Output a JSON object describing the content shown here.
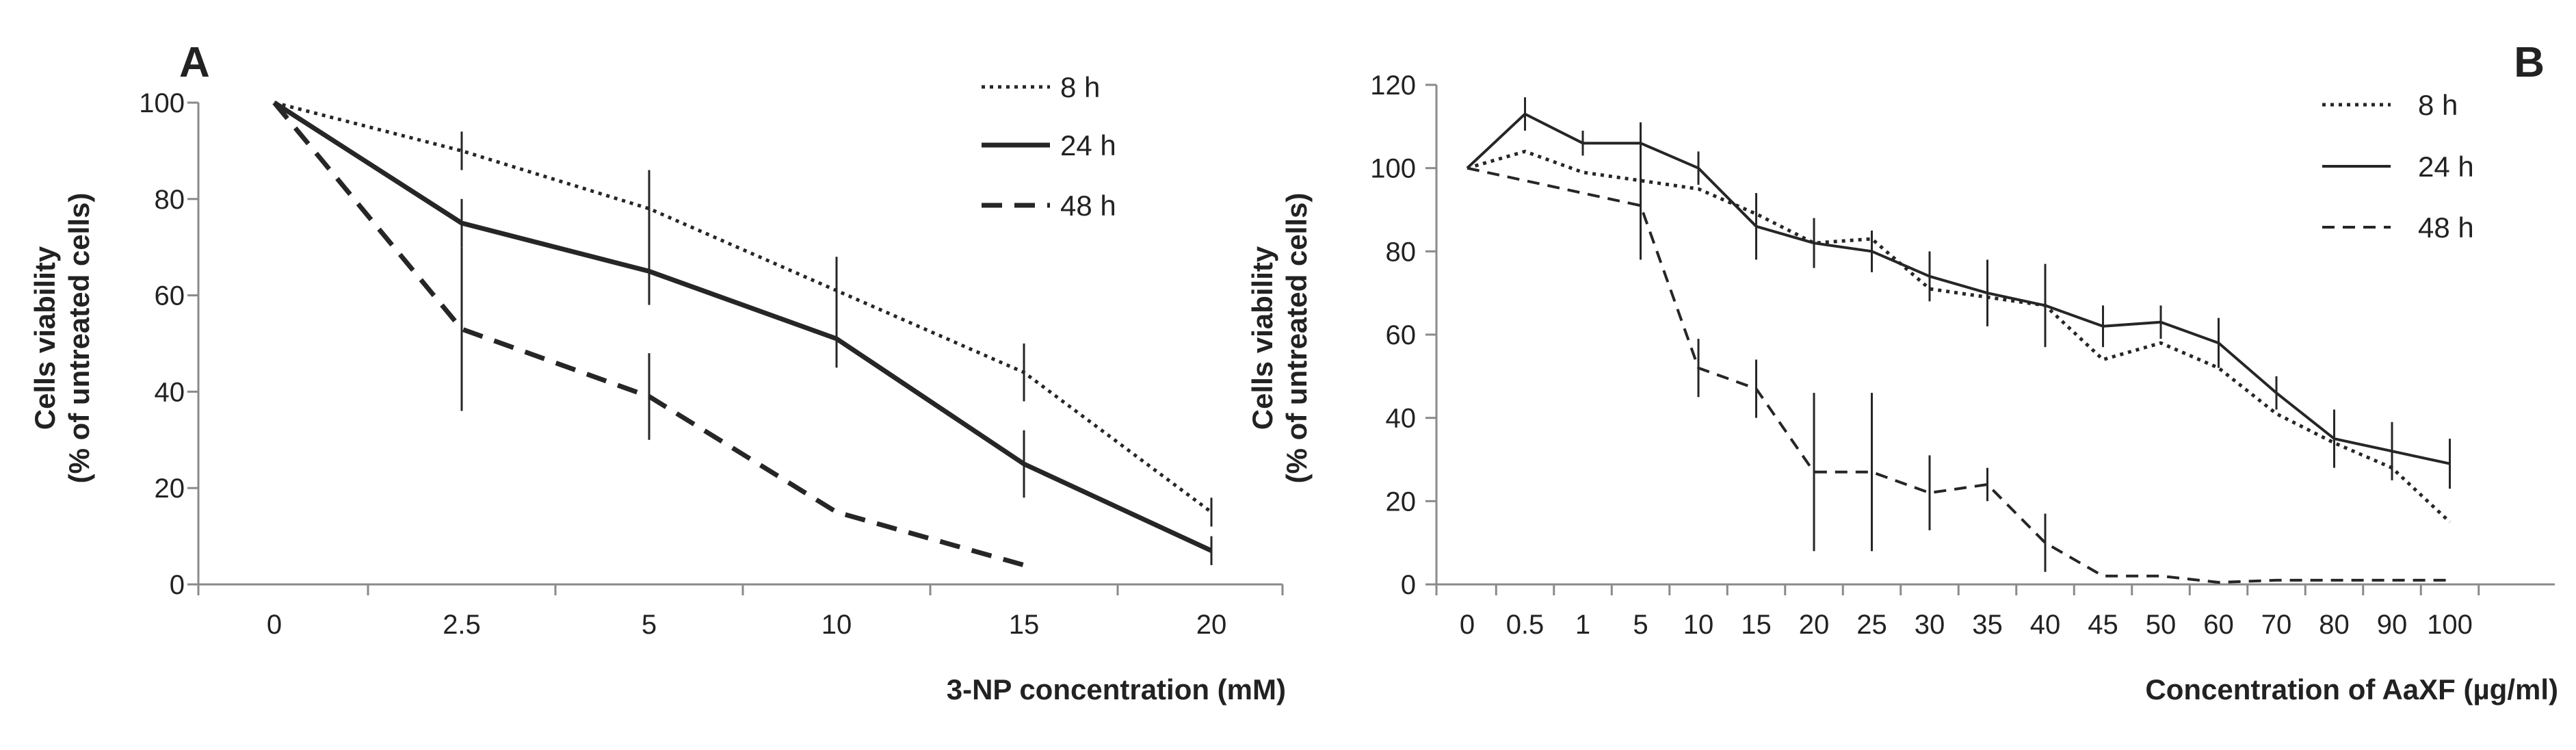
{
  "colors": {
    "series": "#262626",
    "axis": "#8a8a8a",
    "text": "#222222"
  },
  "chart_data": [
    {
      "type": "line",
      "panel": "A",
      "title": "",
      "xlabel": "3-NP concentration (mM)",
      "ylabel_line1": "Cells viability",
      "ylabel_line2": "(% of untreated cells)",
      "categories": [
        "0",
        "2.5",
        "5",
        "10",
        "15",
        "20"
      ],
      "ylim": [
        0,
        100
      ],
      "yticks": [
        "0",
        "20",
        "40",
        "60",
        "80",
        "100"
      ],
      "grid": false,
      "legend_position": "top-right",
      "series": [
        {
          "name": "8 h",
          "style": "dotted",
          "values": [
            100,
            90,
            78,
            61,
            44,
            15
          ],
          "errors": [
            0,
            4,
            8,
            7,
            6,
            3
          ]
        },
        {
          "name": "24 h",
          "style": "solid",
          "values": [
            100,
            75,
            65,
            51,
            25,
            7
          ],
          "errors": [
            0,
            5,
            7,
            6,
            7,
            3
          ]
        },
        {
          "name": "48 h",
          "style": "dashed",
          "values": [
            100,
            53,
            39,
            15,
            4,
            null
          ],
          "errors": [
            0,
            17,
            9,
            0,
            0,
            0
          ]
        }
      ]
    },
    {
      "type": "line",
      "panel": "B",
      "title": "",
      "xlabel": "Concentration of AaXF (µg/ml)",
      "ylabel_line1": "Cells viability",
      "ylabel_line2": "(% of untreated cells)",
      "categories": [
        "0",
        "0.5",
        "1",
        "5",
        "10",
        "15",
        "20",
        "25",
        "30",
        "35",
        "40",
        "45",
        "50",
        "60",
        "70",
        "80",
        "90",
        "100"
      ],
      "ylim": [
        0,
        120
      ],
      "yticks": [
        "0",
        "20",
        "40",
        "60",
        "80",
        "100",
        "120"
      ],
      "grid": false,
      "legend_position": "top-right",
      "series": [
        {
          "name": "8 h",
          "style": "dotted",
          "values": [
            100,
            104,
            99,
            97,
            95,
            89,
            82,
            83,
            71,
            69,
            67,
            54,
            58,
            52,
            41,
            34,
            28,
            15
          ],
          "errors": [
            0,
            0,
            0,
            0,
            0,
            0,
            0,
            0,
            0,
            0,
            0,
            0,
            0,
            0,
            0,
            0,
            0,
            0
          ]
        },
        {
          "name": "24 h",
          "style": "solid",
          "values": [
            100,
            113,
            106,
            106,
            100,
            86,
            82,
            80,
            74,
            70,
            67,
            62,
            63,
            58,
            46,
            35,
            32,
            29
          ],
          "errors": [
            0,
            4,
            3,
            5,
            4,
            8,
            6,
            5,
            6,
            8,
            10,
            5,
            4,
            6,
            4,
            7,
            7,
            6
          ]
        },
        {
          "name": "48 h",
          "style": "dashed",
          "values": [
            100,
            null,
            null,
            91,
            52,
            47,
            27,
            27,
            22,
            24,
            10,
            2,
            2,
            0.5,
            1,
            1,
            1,
            1
          ],
          "errors": [
            0,
            0,
            0,
            13,
            7,
            7,
            19,
            19,
            9,
            4,
            7,
            0,
            0,
            0,
            0,
            0,
            0,
            0
          ]
        }
      ]
    }
  ]
}
